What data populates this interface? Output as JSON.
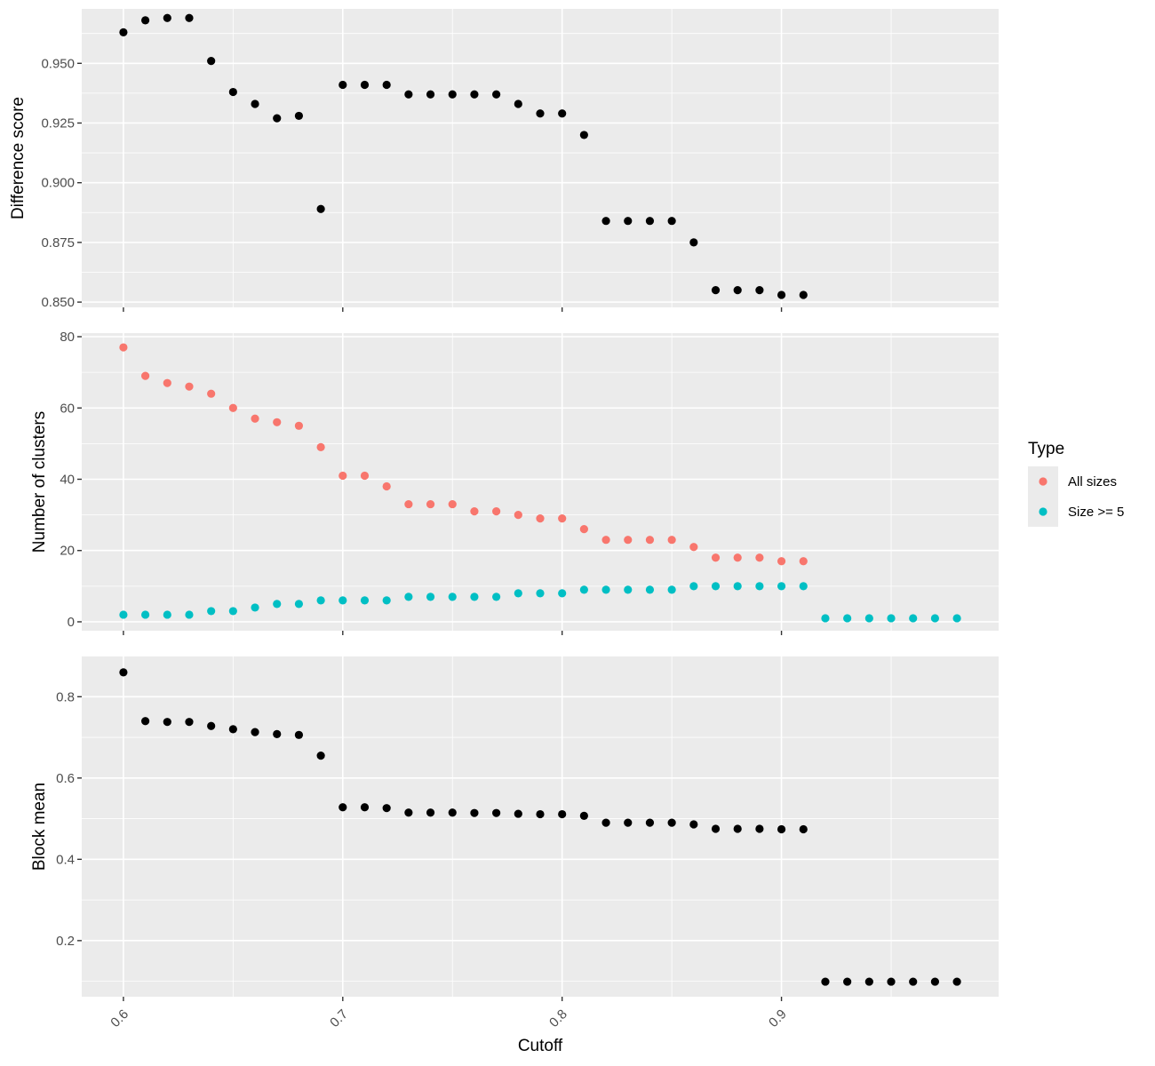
{
  "chart_data": {
    "type": "scatter",
    "xlabel": "Cutoff",
    "xlim": [
      0.581,
      0.999
    ],
    "x_ticks": [
      "0.6",
      "0.7",
      "0.8",
      "0.9"
    ],
    "x_tick_values": [
      0.6,
      0.7,
      0.8,
      0.9
    ],
    "background": "#ebebeb",
    "grid": true,
    "legend": {
      "title": "Type",
      "position": "right",
      "entries": [
        {
          "label": "All sizes",
          "color": "#f8766d"
        },
        {
          "label": "Size >= 5",
          "color": "#00bfc4"
        }
      ]
    },
    "panels": [
      {
        "ylabel": "Difference score",
        "ylim": [
          0.8478,
          0.9728
        ],
        "y_ticks": [
          "0.850",
          "0.875",
          "0.900",
          "0.925",
          "0.950"
        ],
        "y_tick_values": [
          0.85,
          0.875,
          0.9,
          0.925,
          0.95
        ],
        "series": [
          {
            "color": "#000000",
            "x": [
              0.6,
              0.61,
              0.62,
              0.63,
              0.64,
              0.65,
              0.66,
              0.67,
              0.68,
              0.69,
              0.7,
              0.71,
              0.72,
              0.73,
              0.74,
              0.75,
              0.76,
              0.77,
              0.78,
              0.79,
              0.8,
              0.81,
              0.82,
              0.83,
              0.84,
              0.85,
              0.86,
              0.87,
              0.88,
              0.89,
              0.9,
              0.91
            ],
            "y": [
              0.963,
              0.968,
              0.969,
              0.969,
              0.951,
              0.938,
              0.933,
              0.927,
              0.928,
              0.889,
              0.941,
              0.941,
              0.941,
              0.937,
              0.937,
              0.937,
              0.937,
              0.937,
              0.933,
              0.929,
              0.929,
              0.92,
              0.884,
              0.884,
              0.884,
              0.884,
              0.875,
              0.855,
              0.855,
              0.855,
              0.853,
              0.853
            ]
          }
        ]
      },
      {
        "ylabel": "Number of clusters",
        "ylim": [
          -2.5,
          81
        ],
        "y_ticks": [
          "0",
          "20",
          "40",
          "60",
          "80"
        ],
        "y_tick_values": [
          0,
          20,
          40,
          60,
          80
        ],
        "series": [
          {
            "name": "All sizes",
            "color": "#f8766d",
            "x": [
              0.6,
              0.61,
              0.62,
              0.63,
              0.64,
              0.65,
              0.66,
              0.67,
              0.68,
              0.69,
              0.7,
              0.71,
              0.72,
              0.73,
              0.74,
              0.75,
              0.76,
              0.77,
              0.78,
              0.79,
              0.8,
              0.81,
              0.82,
              0.83,
              0.84,
              0.85,
              0.86,
              0.87,
              0.88,
              0.89,
              0.9,
              0.91
            ],
            "y": [
              77,
              69,
              67,
              66,
              64,
              60,
              57,
              56,
              55,
              49,
              41,
              41,
              38,
              33,
              33,
              33,
              31,
              31,
              30,
              29,
              29,
              26,
              23,
              23,
              23,
              23,
              21,
              18,
              18,
              18,
              17,
              17
            ]
          },
          {
            "name": "Size >= 5",
            "color": "#00bfc4",
            "x": [
              0.6,
              0.61,
              0.62,
              0.63,
              0.64,
              0.65,
              0.66,
              0.67,
              0.68,
              0.69,
              0.7,
              0.71,
              0.72,
              0.73,
              0.74,
              0.75,
              0.76,
              0.77,
              0.78,
              0.79,
              0.8,
              0.81,
              0.82,
              0.83,
              0.84,
              0.85,
              0.86,
              0.87,
              0.88,
              0.89,
              0.9,
              0.91,
              0.92,
              0.93,
              0.94,
              0.95,
              0.96,
              0.97,
              0.98
            ],
            "y": [
              2,
              2,
              2,
              2,
              3,
              3,
              4,
              5,
              5,
              6,
              6,
              6,
              6,
              7,
              7,
              7,
              7,
              7,
              8,
              8,
              8,
              9,
              9,
              9,
              9,
              9,
              10,
              10,
              10,
              10,
              10,
              10,
              1,
              1,
              1,
              1,
              1,
              1,
              1
            ]
          }
        ]
      },
      {
        "ylabel": "Block mean",
        "ylim": [
          0.062,
          0.899
        ],
        "y_ticks": [
          "0.2",
          "0.4",
          "0.6",
          "0.8"
        ],
        "y_tick_values": [
          0.2,
          0.4,
          0.6,
          0.8
        ],
        "series": [
          {
            "color": "#000000",
            "x": [
              0.6,
              0.61,
              0.62,
              0.63,
              0.64,
              0.65,
              0.66,
              0.67,
              0.68,
              0.69,
              0.7,
              0.71,
              0.72,
              0.73,
              0.74,
              0.75,
              0.76,
              0.77,
              0.78,
              0.79,
              0.8,
              0.81,
              0.82,
              0.83,
              0.84,
              0.85,
              0.86,
              0.87,
              0.88,
              0.89,
              0.9,
              0.91,
              0.92,
              0.93,
              0.94,
              0.95,
              0.96,
              0.97,
              0.98
            ],
            "y": [
              0.86,
              0.74,
              0.738,
              0.738,
              0.728,
              0.72,
              0.713,
              0.708,
              0.706,
              0.655,
              0.528,
              0.528,
              0.526,
              0.515,
              0.515,
              0.515,
              0.514,
              0.514,
              0.512,
              0.511,
              0.511,
              0.507,
              0.49,
              0.49,
              0.49,
              0.49,
              0.486,
              0.475,
              0.475,
              0.475,
              0.474,
              0.474,
              0.099,
              0.099,
              0.099,
              0.099,
              0.099,
              0.099,
              0.099
            ]
          }
        ]
      }
    ]
  }
}
